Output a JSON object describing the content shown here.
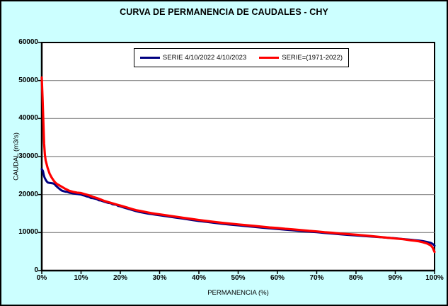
{
  "colors": {
    "background": "#CCFFFF",
    "plot_background": "#FFFFFF",
    "gridline": "#808080",
    "axis": "#000000",
    "series_1": "#000080",
    "series_2": "#FF0000"
  },
  "chart_data": {
    "type": "line",
    "title": "CURVA DE PERMANENCIA DE CAUDALES - CHY",
    "xlabel": "PERMANENCIA (%)",
    "ylabel": "CAUDAL (m3/s)",
    "xlim": [
      0,
      100
    ],
    "ylim": [
      0,
      60000
    ],
    "x_tick_values": [
      0,
      10,
      20,
      30,
      40,
      50,
      60,
      70,
      80,
      90,
      100
    ],
    "x_tick_labels": [
      "0%",
      "10%",
      "20%",
      "30%",
      "40%",
      "50%",
      "60%",
      "70%",
      "80%",
      "90%",
      "100%"
    ],
    "y_tick_values": [
      0,
      10000,
      20000,
      30000,
      40000,
      50000,
      60000
    ],
    "y_tick_labels": [
      "0",
      "10000",
      "20000",
      "30000",
      "40000",
      "50000",
      "60000"
    ],
    "grid": "horizontal-only",
    "legend_position": "top-center",
    "series": [
      {
        "name": "SERIE 4/10/2022 4/10/2023",
        "color": "#000080",
        "points": [
          [
            0,
            26700
          ],
          [
            0.3,
            26200
          ],
          [
            0.5,
            25200
          ],
          [
            0.7,
            24500
          ],
          [
            1,
            23900
          ],
          [
            1.3,
            23400
          ],
          [
            1.6,
            23150
          ],
          [
            2,
            23050
          ],
          [
            2.5,
            23000
          ],
          [
            3,
            22900
          ],
          [
            3.3,
            22700
          ],
          [
            3.6,
            22300
          ],
          [
            4,
            21950
          ],
          [
            4.5,
            21500
          ],
          [
            5,
            21100
          ],
          [
            5.5,
            20900
          ],
          [
            6,
            20750
          ],
          [
            6.5,
            20700
          ],
          [
            7,
            20500
          ],
          [
            7.5,
            20400
          ],
          [
            8,
            20300
          ],
          [
            9,
            20150
          ],
          [
            10,
            20000
          ],
          [
            10.5,
            19800
          ],
          [
            11,
            19700
          ],
          [
            11.5,
            19500
          ],
          [
            12,
            19400
          ],
          [
            12.5,
            19100
          ],
          [
            13,
            19050
          ],
          [
            14,
            18800
          ],
          [
            14.5,
            18500
          ],
          [
            15,
            18450
          ],
          [
            16,
            18100
          ],
          [
            17,
            17800
          ],
          [
            17.5,
            17750
          ],
          [
            18,
            17450
          ],
          [
            19,
            17300
          ],
          [
            19.5,
            17000
          ],
          [
            20,
            16900
          ],
          [
            21,
            16550
          ],
          [
            22,
            16250
          ],
          [
            23,
            15950
          ],
          [
            24,
            15650
          ],
          [
            25,
            15400
          ],
          [
            26,
            15200
          ],
          [
            27,
            15000
          ],
          [
            28,
            14850
          ],
          [
            29,
            14700
          ],
          [
            30,
            14550
          ],
          [
            32,
            14250
          ],
          [
            34,
            13950
          ],
          [
            36,
            13650
          ],
          [
            38,
            13350
          ],
          [
            40,
            13050
          ],
          [
            42,
            12800
          ],
          [
            44,
            12550
          ],
          [
            46,
            12300
          ],
          [
            48,
            12100
          ],
          [
            50,
            11900
          ],
          [
            52,
            11700
          ],
          [
            54,
            11500
          ],
          [
            56,
            11300
          ],
          [
            58,
            11100
          ],
          [
            60,
            10950
          ],
          [
            62,
            10750
          ],
          [
            64,
            10600
          ],
          [
            66,
            10400
          ],
          [
            68,
            10250
          ],
          [
            70,
            10100
          ],
          [
            72,
            9900
          ],
          [
            74,
            9750
          ],
          [
            76,
            9550
          ],
          [
            78,
            9400
          ],
          [
            80,
            9250
          ],
          [
            82,
            9100
          ],
          [
            84,
            8950
          ],
          [
            86,
            8800
          ],
          [
            88,
            8650
          ],
          [
            90,
            8500
          ],
          [
            92,
            8300
          ],
          [
            94,
            8100
          ],
          [
            95,
            8000
          ],
          [
            96,
            7900
          ],
          [
            97,
            7750
          ],
          [
            98,
            7550
          ],
          [
            99,
            7300
          ],
          [
            99.5,
            7050
          ],
          [
            100,
            6550
          ]
        ]
      },
      {
        "name": "SERIE=(1971-2022)",
        "color": "#FF0000",
        "points": [
          [
            0,
            50800
          ],
          [
            0.2,
            45500
          ],
          [
            0.4,
            39500
          ],
          [
            0.6,
            33500
          ],
          [
            0.8,
            30500
          ],
          [
            1,
            29000
          ],
          [
            1.5,
            27000
          ],
          [
            2,
            25500
          ],
          [
            2.5,
            24500
          ],
          [
            3,
            23700
          ],
          [
            3.5,
            23100
          ],
          [
            4,
            22700
          ],
          [
            4.5,
            22400
          ],
          [
            5,
            22100
          ],
          [
            6,
            21500
          ],
          [
            7,
            21000
          ],
          [
            8,
            20700
          ],
          [
            9,
            20500
          ],
          [
            10,
            20400
          ],
          [
            11,
            20100
          ],
          [
            12,
            19800
          ],
          [
            13,
            19400
          ],
          [
            14,
            19100
          ],
          [
            15,
            18700
          ],
          [
            16,
            18300
          ],
          [
            17,
            18000
          ],
          [
            18,
            17700
          ],
          [
            19,
            17400
          ],
          [
            20,
            17100
          ],
          [
            21,
            16800
          ],
          [
            22,
            16500
          ],
          [
            23,
            16200
          ],
          [
            24,
            15900
          ],
          [
            25,
            15700
          ],
          [
            26,
            15500
          ],
          [
            27,
            15300
          ],
          [
            28,
            15100
          ],
          [
            29,
            14950
          ],
          [
            30,
            14800
          ],
          [
            32,
            14500
          ],
          [
            34,
            14200
          ],
          [
            36,
            13900
          ],
          [
            38,
            13600
          ],
          [
            40,
            13300
          ],
          [
            42,
            13050
          ],
          [
            44,
            12800
          ],
          [
            46,
            12550
          ],
          [
            48,
            12350
          ],
          [
            50,
            12150
          ],
          [
            52,
            11950
          ],
          [
            54,
            11750
          ],
          [
            56,
            11550
          ],
          [
            58,
            11350
          ],
          [
            60,
            11200
          ],
          [
            62,
            11000
          ],
          [
            64,
            10850
          ],
          [
            66,
            10650
          ],
          [
            68,
            10450
          ],
          [
            70,
            10300
          ],
          [
            72,
            10100
          ],
          [
            74,
            9950
          ],
          [
            76,
            9750
          ],
          [
            78,
            9600
          ],
          [
            80,
            9450
          ],
          [
            82,
            9250
          ],
          [
            84,
            9050
          ],
          [
            86,
            8850
          ],
          [
            88,
            8650
          ],
          [
            90,
            8450
          ],
          [
            92,
            8250
          ],
          [
            94,
            7950
          ],
          [
            95,
            7850
          ],
          [
            96,
            7700
          ],
          [
            97,
            7450
          ],
          [
            98,
            7150
          ],
          [
            99,
            6650
          ],
          [
            99.5,
            6100
          ],
          [
            100,
            4900
          ]
        ]
      }
    ]
  }
}
